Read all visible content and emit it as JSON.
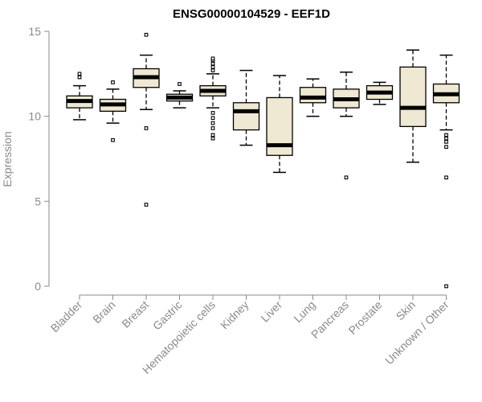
{
  "chart_data": {
    "type": "boxplot",
    "title": "ENSG00000104529 - EEF1D",
    "ylabel": "Expression",
    "ylim": [
      0,
      15
    ],
    "yticks": [
      0,
      5,
      10,
      15
    ],
    "categories": [
      "Bladder",
      "Brain",
      "Breast",
      "Gastric",
      "Hematopoietic cells",
      "Kidney",
      "Liver",
      "Lung",
      "Pancreas",
      "Prostate",
      "Skin",
      "Unknown / Other"
    ],
    "boxes": [
      {
        "category": "Bladder",
        "whisker_low": 9.8,
        "q1": 10.5,
        "median": 10.9,
        "q3": 11.2,
        "whisker_high": 11.8,
        "outliers": [
          12.3,
          12.5
        ]
      },
      {
        "category": "Brain",
        "whisker_low": 9.6,
        "q1": 10.3,
        "median": 10.7,
        "q3": 11.0,
        "whisker_high": 11.6,
        "outliers": [
          8.6,
          12.0
        ]
      },
      {
        "category": "Breast",
        "whisker_low": 10.4,
        "q1": 11.7,
        "median": 12.3,
        "q3": 12.8,
        "whisker_high": 13.6,
        "outliers": [
          4.8,
          9.3,
          14.8
        ]
      },
      {
        "category": "Gastric",
        "whisker_low": 10.5,
        "q1": 10.9,
        "median": 11.1,
        "q3": 11.3,
        "whisker_high": 11.5,
        "outliers": [
          11.9
        ]
      },
      {
        "category": "Hematopoietic cells",
        "whisker_low": 10.5,
        "q1": 11.2,
        "median": 11.5,
        "q3": 11.8,
        "whisker_high": 12.5,
        "outliers": [
          8.7,
          8.9,
          9.3,
          9.6,
          9.9,
          10.2,
          12.7,
          12.9,
          13.1,
          13.3,
          13.4
        ]
      },
      {
        "category": "Kidney",
        "whisker_low": 8.3,
        "q1": 9.2,
        "median": 10.3,
        "q3": 10.8,
        "whisker_high": 12.7,
        "outliers": []
      },
      {
        "category": "Liver",
        "whisker_low": 6.7,
        "q1": 7.7,
        "median": 8.3,
        "q3": 11.1,
        "whisker_high": 12.4,
        "outliers": []
      },
      {
        "category": "Lung",
        "whisker_low": 10.0,
        "q1": 10.8,
        "median": 11.1,
        "q3": 11.7,
        "whisker_high": 12.2,
        "outliers": []
      },
      {
        "category": "Pancreas",
        "whisker_low": 10.0,
        "q1": 10.5,
        "median": 11.0,
        "q3": 11.6,
        "whisker_high": 12.6,
        "outliers": [
          6.4
        ]
      },
      {
        "category": "Prostate",
        "whisker_low": 10.7,
        "q1": 11.0,
        "median": 11.4,
        "q3": 11.8,
        "whisker_high": 12.0,
        "outliers": []
      },
      {
        "category": "Skin",
        "whisker_low": 7.3,
        "q1": 9.4,
        "median": 10.5,
        "q3": 12.9,
        "whisker_high": 13.9,
        "outliers": []
      },
      {
        "category": "Unknown / Other",
        "whisker_low": 9.2,
        "q1": 10.8,
        "median": 11.3,
        "q3": 11.9,
        "whisker_high": 13.6,
        "outliers": [
          0.0,
          6.4,
          8.2,
          8.5,
          8.7,
          8.9
        ]
      }
    ],
    "box_fill": "#efe8d2",
    "box_stroke": "#000000",
    "axis_color": "#8a8a8a",
    "grid": false,
    "legend": "none"
  }
}
